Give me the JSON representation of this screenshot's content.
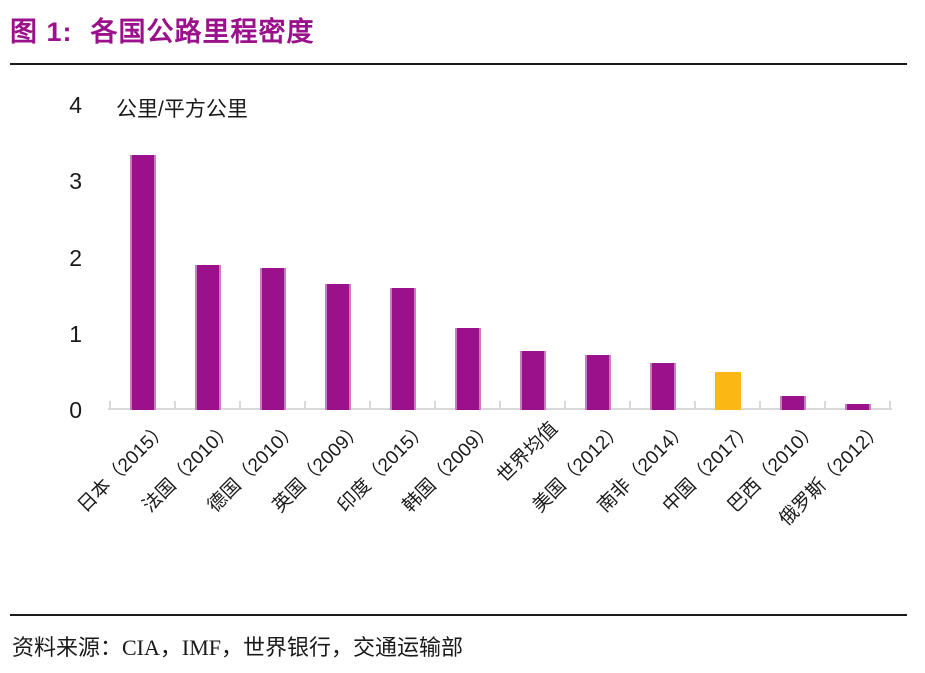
{
  "figure": {
    "title_prefix": "图 1:",
    "title_text": "各国公路里程密度",
    "source_text": "资料来源：CIA，IMF，世界银行，交通运输部"
  },
  "colors": {
    "accent_purple": "#9A118B",
    "bar_edge_light": "#C77EC0",
    "highlight_yellow": "#FBB713",
    "axis_gray": "#D9D9D9",
    "rule_black": "#1A1A1A"
  },
  "chart_data": {
    "type": "bar",
    "title": "各国公路里程密度",
    "unit_label": "公里/平方公里",
    "categories": [
      "日本（2015）",
      "法国（2010）",
      "德国（2010）",
      "英国（2009）",
      "印度（2015）",
      "韩国（2009）",
      "世界均值",
      "美国（2012）",
      "南非（2014）",
      "中国（2017）",
      "巴西（2010）",
      "俄罗斯（2012）"
    ],
    "values": [
      3.35,
      1.9,
      1.86,
      1.65,
      1.6,
      1.08,
      0.77,
      0.72,
      0.62,
      0.5,
      0.19,
      0.08
    ],
    "highlight_index": 9,
    "highlight_category": "中国（2017）",
    "xlabel": "",
    "ylabel": "公里/平方公里",
    "ylim": [
      0,
      4
    ],
    "yticks": [
      0,
      1,
      2,
      3,
      4
    ],
    "grid": false,
    "legend": false,
    "x_label_rotation_deg": 45
  }
}
